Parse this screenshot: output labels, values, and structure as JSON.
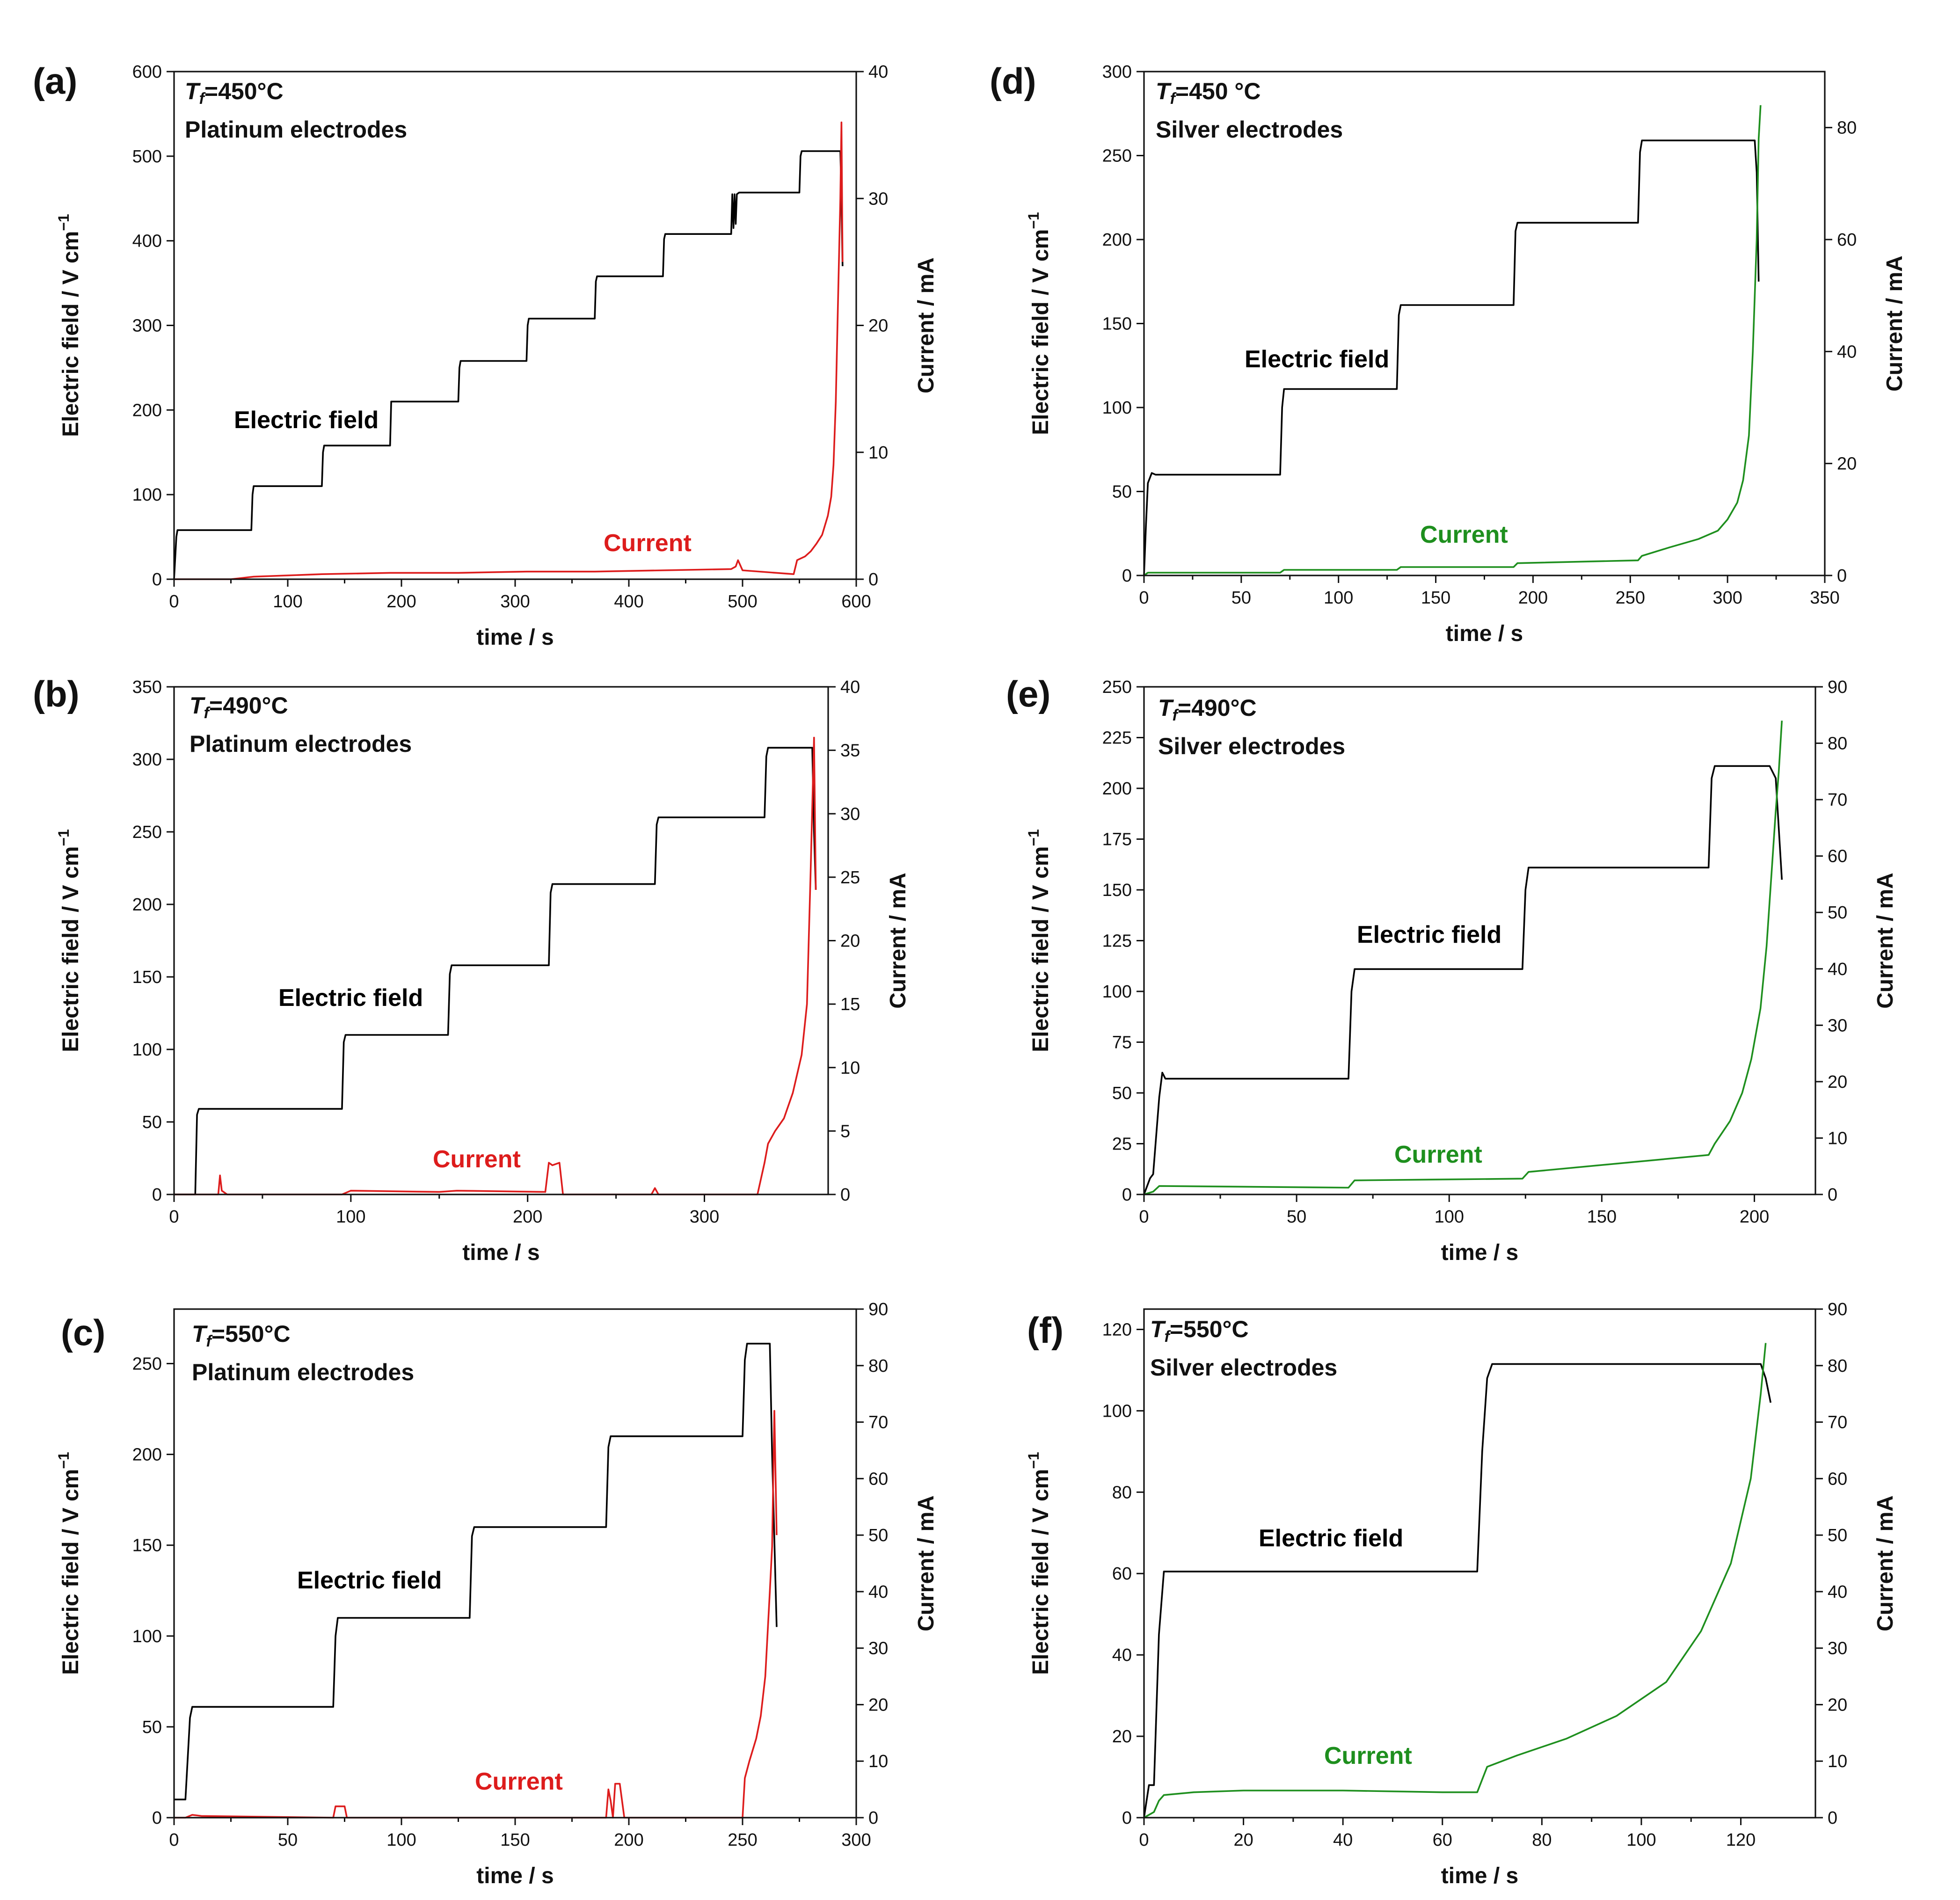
{
  "chart_data": [
    {
      "panel": "(a)",
      "type": "line",
      "temperature": "=450°C",
      "electrode": "Platinum electrodes",
      "xlabel": "time / s",
      "ylabel_left": "Electric field / V cm",
      "ylabel_left_sup": "−1",
      "ylabel_right": "Current / mA",
      "xlim": [
        0,
        600
      ],
      "ylim_left": [
        0,
        600
      ],
      "ylim_right": [
        0,
        40
      ],
      "xticks": [
        0,
        100,
        200,
        300,
        400,
        500,
        600
      ],
      "yticks_left": [
        0,
        100,
        200,
        300,
        400,
        500,
        600
      ],
      "yticks_right": [
        0,
        10,
        20,
        30,
        40
      ],
      "series": [
        {
          "name": "Electric field",
          "axis": "left",
          "color": "#000000",
          "x": [
            0,
            2,
            3,
            68,
            69,
            70,
            130,
            131,
            132,
            190,
            191,
            192,
            250,
            251,
            252,
            310,
            311,
            312,
            370,
            371,
            372,
            430,
            431,
            432,
            490,
            491,
            492,
            493,
            494,
            495,
            497,
            550,
            551,
            552,
            585,
            586,
            587,
            588
          ],
          "y": [
            0,
            50,
            58,
            58,
            100,
            110,
            110,
            150,
            158,
            158,
            210,
            210,
            210,
            250,
            258,
            258,
            300,
            308,
            308,
            352,
            358,
            358,
            402,
            408,
            408,
            455,
            415,
            455,
            420,
            455,
            457,
            457,
            500,
            506,
            506,
            506,
            450,
            370
          ]
        },
        {
          "name": "Current",
          "axis": "right",
          "color": "#dd1c1c",
          "x": [
            0,
            50,
            70,
            130,
            190,
            250,
            310,
            370,
            430,
            490,
            492,
            494,
            496,
            500,
            545,
            548,
            555,
            560,
            565,
            570,
            575,
            578,
            580,
            582,
            584,
            586,
            587,
            588
          ],
          "y": [
            0,
            0,
            0.2,
            0.4,
            0.5,
            0.5,
            0.6,
            0.6,
            0.7,
            0.8,
            0.9,
            1.0,
            1.5,
            0.7,
            0.4,
            1.5,
            1.8,
            2.2,
            2.8,
            3.5,
            5,
            6.5,
            9,
            14,
            22,
            30,
            36,
            25
          ]
        }
      ],
      "labels": {
        "field": "Electric field",
        "current": "Current"
      }
    },
    {
      "panel": "(b)",
      "type": "line",
      "temperature": "=490°C",
      "electrode": "Platinum electrodes",
      "xlabel": "time / s",
      "ylabel_left": "Electric field / V cm",
      "ylabel_left_sup": "−1",
      "ylabel_right": "Current / mA",
      "xlim": [
        0,
        370
      ],
      "ylim_left": [
        0,
        350
      ],
      "ylim_right": [
        0,
        40
      ],
      "xticks": [
        0,
        100,
        200,
        300
      ],
      "yticks_left": [
        0,
        50,
        100,
        150,
        200,
        250,
        300,
        350
      ],
      "yticks_right": [
        0,
        5,
        10,
        15,
        20,
        25,
        30,
        35,
        40
      ],
      "series": [
        {
          "name": "Electric field",
          "axis": "left",
          "color": "#000000",
          "x": [
            0,
            12,
            13,
            14,
            95,
            96,
            97,
            155,
            156,
            157,
            212,
            213,
            214,
            272,
            273,
            274,
            334,
            335,
            336,
            360,
            361,
            362,
            363
          ],
          "y": [
            0,
            0,
            55,
            59,
            59,
            105,
            110,
            110,
            152,
            158,
            158,
            208,
            214,
            214,
            255,
            260,
            260,
            302,
            308,
            308,
            308,
            250,
            210
          ]
        },
        {
          "name": "Current",
          "axis": "right",
          "color": "#dd1c1c",
          "x": [
            0,
            25,
            26,
            27,
            30,
            95,
            100,
            150,
            160,
            210,
            212,
            214,
            218,
            220,
            222,
            270,
            272,
            274,
            276,
            330,
            334,
            336,
            340,
            345,
            350,
            355,
            358,
            360,
            362,
            363
          ],
          "y": [
            0,
            0,
            1.5,
            0.3,
            0,
            0,
            0.3,
            0.2,
            0.3,
            0.2,
            2.5,
            2.3,
            2.5,
            0,
            0,
            0,
            0.5,
            0,
            0,
            0,
            2.5,
            4,
            5,
            6,
            8,
            11,
            15,
            25,
            36,
            24
          ]
        }
      ],
      "labels": {
        "field": "Electric field",
        "current": "Current"
      }
    },
    {
      "panel": "(c)",
      "type": "line",
      "temperature": "=550°C",
      "electrode": "Platinum electrodes",
      "xlabel": "time / s",
      "ylabel_left": "Electric field / V cm",
      "ylabel_left_sup": "−1",
      "ylabel_right": "Current / mA",
      "xlim": [
        0,
        300
      ],
      "ylim_left": [
        0,
        280
      ],
      "ylim_right": [
        0,
        90
      ],
      "xticks": [
        0,
        50,
        100,
        150,
        200,
        250,
        300
      ],
      "yticks_left": [
        0,
        50,
        100,
        150,
        200,
        250
      ],
      "yticks_right": [
        0,
        10,
        20,
        30,
        40,
        50,
        60,
        70,
        80,
        90
      ],
      "series": [
        {
          "name": "Electric field",
          "axis": "left",
          "color": "#000000",
          "x": [
            0,
            5,
            7,
            8,
            70,
            71,
            72,
            130,
            131,
            132,
            190,
            191,
            192,
            250,
            251,
            252,
            262,
            263,
            265
          ],
          "y": [
            10,
            10,
            55,
            61,
            61,
            100,
            110,
            110,
            155,
            160,
            160,
            204,
            210,
            210,
            252,
            261,
            261,
            200,
            105
          ]
        },
        {
          "name": "Current",
          "axis": "right",
          "color": "#dd1c1c",
          "x": [
            0,
            5,
            8,
            12,
            70,
            71,
            75,
            76,
            78,
            130,
            190,
            191,
            192,
            193,
            194,
            196,
            198,
            200,
            250,
            251,
            253,
            256,
            258,
            260,
            262,
            263,
            264,
            265
          ],
          "y": [
            0,
            0,
            0.5,
            0.3,
            0,
            2,
            2,
            0,
            0,
            0,
            0,
            5,
            3,
            0,
            6,
            6,
            0,
            0,
            0,
            7,
            10,
            14,
            18,
            25,
            40,
            48,
            72,
            50
          ]
        }
      ],
      "labels": {
        "field": "Electric field",
        "current": "Current"
      }
    },
    {
      "panel": "(d)",
      "type": "line",
      "temperature": "=450 °C",
      "electrode": "Silver electrodes",
      "xlabel": "time / s",
      "ylabel_left": "Electric field / V cm",
      "ylabel_left_sup": "−1",
      "ylabel_right": "Current / mA",
      "xlim": [
        0,
        350
      ],
      "ylim_left": [
        0,
        300
      ],
      "ylim_right": [
        0,
        90
      ],
      "xticks": [
        0,
        50,
        100,
        150,
        200,
        250,
        300,
        350
      ],
      "yticks_left": [
        0,
        50,
        100,
        150,
        200,
        250,
        300
      ],
      "yticks_right": [
        0,
        20,
        40,
        60,
        80
      ],
      "series": [
        {
          "name": "Electric field",
          "axis": "left",
          "color": "#000000",
          "x": [
            0,
            1,
            2,
            4,
            6,
            70,
            71,
            72,
            130,
            131,
            132,
            190,
            191,
            192,
            254,
            255,
            256,
            314,
            315,
            316
          ],
          "y": [
            0,
            30,
            55,
            61,
            60,
            60,
            100,
            111,
            111,
            155,
            161,
            161,
            205,
            210,
            210,
            252,
            259,
            259,
            240,
            175
          ]
        },
        {
          "name": "Current",
          "axis": "right",
          "color": "#1e8f1e",
          "x": [
            0,
            2,
            70,
            72,
            130,
            132,
            190,
            192,
            254,
            256,
            270,
            285,
            295,
            300,
            305,
            308,
            311,
            313,
            315,
            316,
            317
          ],
          "y": [
            0,
            0.5,
            0.5,
            1,
            1,
            1.5,
            1.5,
            2.2,
            2.7,
            3.5,
            5,
            6.5,
            8,
            10,
            13,
            17,
            25,
            40,
            60,
            78,
            84
          ]
        }
      ],
      "labels": {
        "field": "Electric field",
        "current": "Current"
      }
    },
    {
      "panel": "(e)",
      "type": "line",
      "temperature": "=490°C",
      "electrode": "Silver electrodes",
      "xlabel": "time / s",
      "ylabel_left": "Electric field / V cm",
      "ylabel_left_sup": "−1",
      "ylabel_right": "Current / mA",
      "xlim": [
        0,
        220
      ],
      "ylim_left": [
        0,
        250
      ],
      "ylim_right": [
        0,
        90
      ],
      "xticks": [
        0,
        50,
        100,
        150,
        200
      ],
      "yticks_left": [
        0,
        25,
        50,
        75,
        100,
        125,
        150,
        175,
        200,
        225,
        250
      ],
      "yticks_right": [
        0,
        10,
        20,
        30,
        40,
        50,
        60,
        70,
        80,
        90
      ],
      "series": [
        {
          "name": "Electric field",
          "axis": "left",
          "color": "#000000",
          "x": [
            0,
            2,
            3,
            5,
            6,
            7,
            67,
            68,
            69,
            124,
            125,
            126,
            185,
            186,
            187,
            205,
            207,
            209
          ],
          "y": [
            0,
            8,
            10,
            48,
            60,
            57,
            57,
            100,
            111,
            111,
            150,
            161,
            161,
            205,
            211,
            211,
            205,
            155
          ]
        },
        {
          "name": "Current",
          "axis": "right",
          "color": "#1e8f1e",
          "x": [
            0,
            3,
            5,
            67,
            69,
            124,
            126,
            185,
            187,
            192,
            196,
            199,
            202,
            204,
            206,
            207,
            208,
            209
          ],
          "y": [
            0,
            0.5,
            1.5,
            1.2,
            2.5,
            2.8,
            4,
            7,
            9,
            13,
            18,
            24,
            33,
            44,
            60,
            68,
            75,
            84
          ]
        }
      ],
      "labels": {
        "field": "Electric field",
        "current": "Current"
      }
    },
    {
      "panel": "(f)",
      "type": "line",
      "temperature": "=550°C",
      "electrode": "Silver electrodes",
      "xlabel": "time / s",
      "ylabel_left": "Electric field / V cm",
      "ylabel_left_sup": "−1",
      "ylabel_right": "Current / mA",
      "xlim": [
        0,
        135
      ],
      "ylim_left": [
        0,
        125
      ],
      "ylim_right": [
        0,
        90
      ],
      "xticks": [
        0,
        20,
        40,
        60,
        80,
        100,
        120
      ],
      "yticks_left": [
        0,
        20,
        40,
        60,
        80,
        100,
        120
      ],
      "yticks_right": [
        0,
        10,
        20,
        30,
        40,
        50,
        60,
        70,
        80,
        90
      ],
      "series": [
        {
          "name": "Electric field",
          "axis": "left",
          "color": "#000000",
          "x": [
            0,
            1,
            2,
            3,
            4,
            67,
            68,
            69,
            70,
            124,
            125,
            126
          ],
          "y": [
            0,
            8,
            8,
            45,
            60.5,
            60.5,
            90,
            108,
            111.5,
            111.5,
            108,
            102
          ]
        },
        {
          "name": "Current",
          "axis": "right",
          "color": "#1e8f1e",
          "x": [
            0,
            2,
            3,
            4,
            10,
            20,
            40,
            60,
            67,
            69,
            75,
            85,
            95,
            105,
            112,
            118,
            122,
            124,
            125
          ],
          "y": [
            0,
            1,
            3,
            4,
            4.5,
            4.8,
            4.8,
            4.5,
            4.5,
            9,
            11,
            14,
            18,
            24,
            33,
            45,
            60,
            75,
            84
          ]
        }
      ],
      "labels": {
        "field": "Electric field",
        "current": "Current"
      }
    }
  ]
}
